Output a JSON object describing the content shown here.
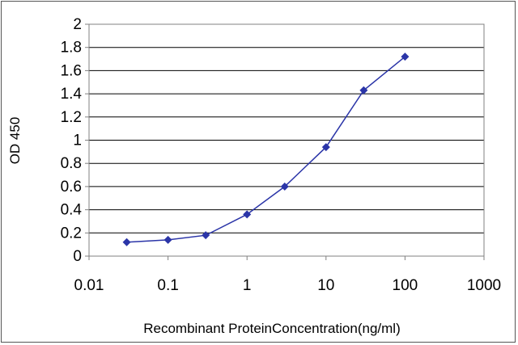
{
  "chart_data": {
    "type": "line",
    "title": "",
    "xlabel": "Recombinant ProteinConcentration(ng/ml)",
    "ylabel": "OD 450",
    "x_scale": "log",
    "xlim": [
      0.01,
      1000
    ],
    "ylim": [
      0,
      2
    ],
    "x_ticks": [
      "0.01",
      "0.1",
      "1",
      "10",
      "100",
      "1000"
    ],
    "y_ticks": [
      "0",
      "0.2",
      "0.4",
      "0.6",
      "0.8",
      "1",
      "1.2",
      "1.4",
      "1.6",
      "1.8",
      "2"
    ],
    "grid": "horizontal",
    "series": [
      {
        "x": [
          0.03,
          0.1,
          0.3,
          1,
          3,
          10,
          30,
          100
        ],
        "y": [
          0.12,
          0.14,
          0.18,
          0.36,
          0.6,
          0.94,
          1.43,
          1.72
        ],
        "color": "#2b35a8",
        "marker": "diamond"
      }
    ]
  }
}
